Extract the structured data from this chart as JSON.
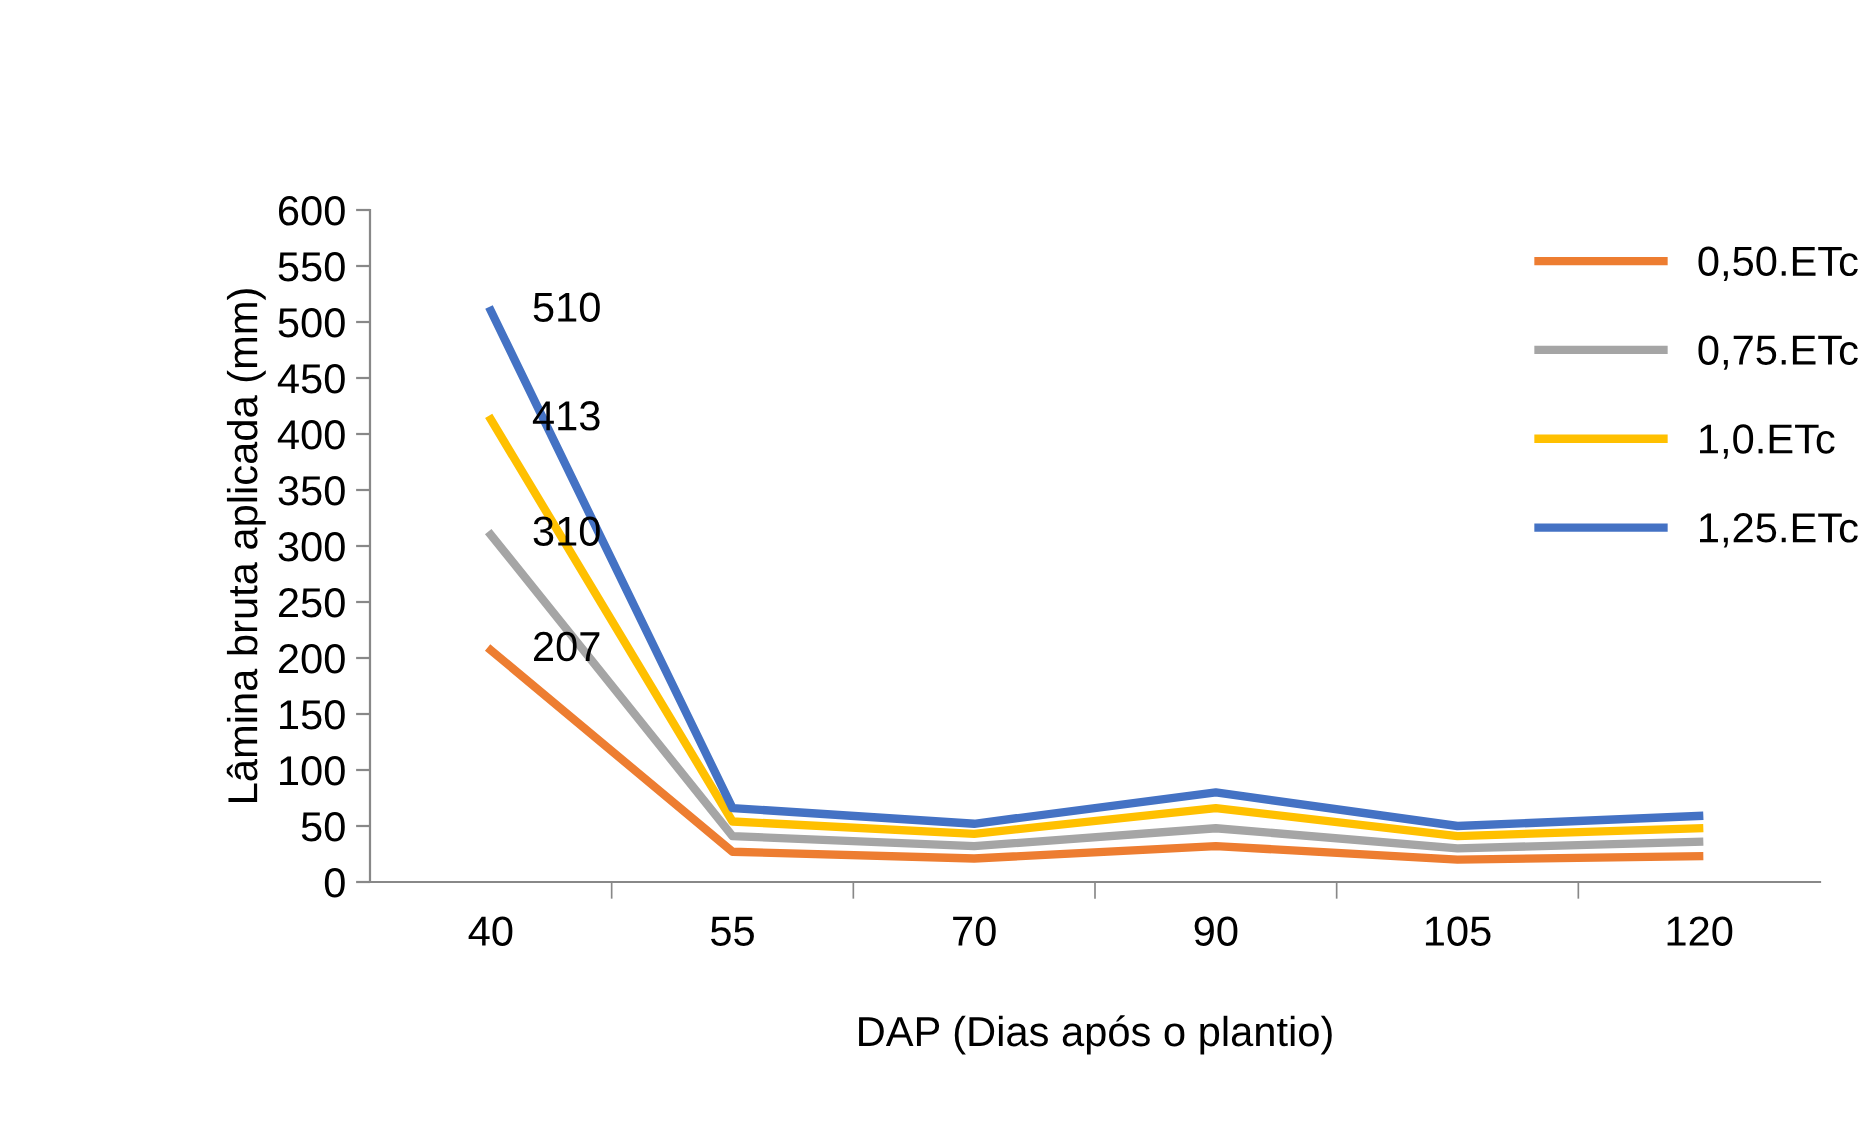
{
  "chart_data": {
    "type": "line",
    "xlabel": "DAP (Dias após o plantio)",
    "ylabel": "Lâmina bruta aplicada (mm)",
    "categories": [
      "40",
      "55",
      "70",
      "90",
      "105",
      "120"
    ],
    "ylim": [
      0,
      600
    ],
    "yticks": [
      0,
      50,
      100,
      150,
      200,
      250,
      300,
      350,
      400,
      450,
      500,
      550,
      600
    ],
    "grid": false,
    "legend": "right",
    "marker": "none",
    "line_style": "solid",
    "series": [
      {
        "name": "0,50.ETc",
        "color": "#ed7d31",
        "values": [
          207,
          27,
          21,
          32,
          20,
          23
        ],
        "value_labels": [
          "207",
          null,
          null,
          null,
          null,
          null
        ]
      },
      {
        "name": "0,75.ETc",
        "color": "#a5a5a5",
        "values": [
          310,
          41,
          32,
          48,
          30,
          36
        ],
        "value_labels": [
          "310",
          null,
          null,
          null,
          null,
          null
        ]
      },
      {
        "name": "1,0.ETc",
        "color": "#ffc000",
        "values": [
          413,
          54,
          43,
          66,
          41,
          48
        ],
        "value_labels": [
          "413",
          null,
          null,
          null,
          null,
          null
        ]
      },
      {
        "name": "1,25.ETc",
        "color": "#4472c4",
        "values": [
          510,
          66,
          52,
          80,
          50,
          59
        ],
        "value_labels": [
          "510",
          null,
          null,
          null,
          null,
          null
        ]
      }
    ]
  }
}
